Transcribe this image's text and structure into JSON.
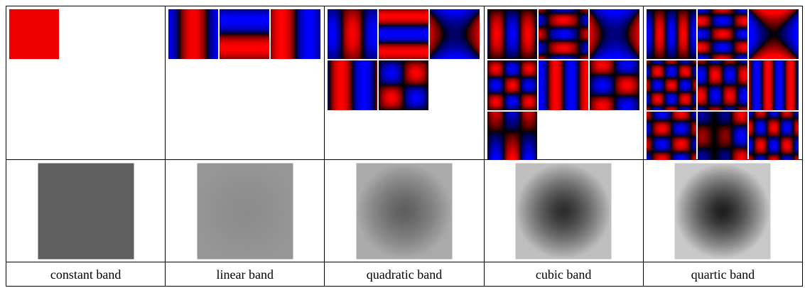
{
  "columns": [
    {
      "label": "constant band"
    },
    {
      "label": "linear band"
    },
    {
      "label": "quadratic band"
    },
    {
      "label": "cubic band"
    },
    {
      "label": "quartic band"
    }
  ],
  "colors": {
    "positive": "#ff0000",
    "negative": "#0000ff",
    "zero": "#000000"
  }
}
